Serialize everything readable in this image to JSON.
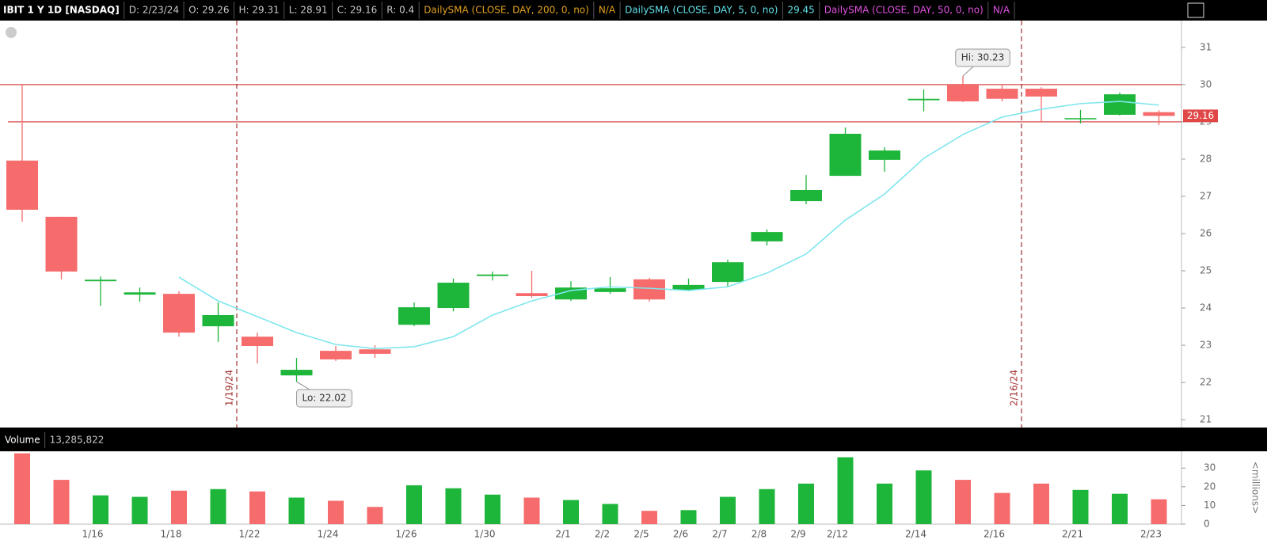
{
  "chart_data": {
    "type": "candlestick",
    "header": [
      {
        "text": "IBIT 1 Y 1D [NASDAQ]",
        "color": "#ffffff"
      },
      {
        "text": "D: 2/23/24",
        "color": "#c8c8c8"
      },
      {
        "text": "O: 29.26",
        "color": "#c8c8c8"
      },
      {
        "text": "H: 29.31",
        "color": "#c8c8c8"
      },
      {
        "text": "L: 28.91",
        "color": "#c8c8c8"
      },
      {
        "text": "C: 29.16",
        "color": "#c8c8c8"
      },
      {
        "text": "R: 0.4",
        "color": "#c8c8c8"
      }
    ],
    "studies": [
      {
        "name": "DailySMA (CLOSE, DAY, 200, 0, no)",
        "value": "N/A",
        "color": "#e0a020"
      },
      {
        "name": "DailySMA (CLOSE, DAY, 5, 0, no)",
        "value": 29.45,
        "color": "#60e0e8"
      },
      {
        "name": "DailySMA (CLOSE, DAY, 50, 0, no)",
        "value": "N/A",
        "color": "#e050e0"
      }
    ],
    "categories": [
      null,
      null,
      "1/16",
      null,
      "1/18",
      null,
      "1/22",
      null,
      "1/24",
      null,
      "1/26",
      null,
      "1/30",
      null,
      "2/1",
      "2/2",
      "2/5",
      "2/6",
      "2/7",
      "2/8",
      "2/9",
      "2/12",
      null,
      "2/14",
      null,
      "2/16",
      null,
      "2/21",
      null,
      "2/23"
    ],
    "open": [
      27.96,
      26.45,
      24.72,
      24.36,
      24.38,
      23.51,
      23.23,
      22.19,
      22.85,
      22.89,
      23.55,
      24.0,
      24.86,
      24.4,
      24.23,
      24.43,
      24.77,
      24.49,
      24.7,
      25.79,
      26.87,
      27.55,
      27.98,
      29.58,
      30.0,
      29.89,
      29.89,
      29.07,
      29.19,
      29.26
    ],
    "high": [
      30.0,
      26.45,
      24.85,
      24.55,
      24.45,
      24.15,
      23.34,
      22.66,
      22.98,
      23.0,
      24.15,
      24.79,
      24.98,
      25.0,
      24.72,
      24.83,
      24.81,
      24.79,
      25.3,
      26.11,
      27.57,
      28.85,
      28.32,
      29.87,
      30.23,
      29.98,
      29.93,
      29.32,
      29.79,
      29.31
    ],
    "low": [
      26.32,
      24.77,
      24.06,
      24.17,
      23.23,
      23.09,
      22.51,
      22.02,
      22.58,
      22.66,
      23.51,
      23.91,
      24.74,
      24.28,
      24.19,
      24.38,
      24.17,
      24.45,
      24.57,
      25.68,
      26.79,
      27.55,
      27.66,
      29.28,
      29.53,
      29.55,
      28.98,
      28.96,
      29.17,
      28.91
    ],
    "close": [
      26.64,
      24.98,
      24.76,
      24.42,
      23.34,
      23.81,
      22.98,
      22.34,
      22.62,
      22.77,
      24.02,
      24.68,
      24.9,
      24.32,
      24.55,
      24.53,
      24.23,
      24.62,
      25.23,
      26.04,
      27.17,
      28.68,
      28.23,
      29.62,
      29.55,
      29.62,
      29.68,
      29.1,
      29.74,
      29.16
    ],
    "sma": {
      "color": "#7fe6ee",
      "values": [
        null,
        null,
        null,
        null,
        24.83,
        24.19,
        23.77,
        23.34,
        23.02,
        22.91,
        22.96,
        23.23,
        23.81,
        24.19,
        24.47,
        24.57,
        24.53,
        24.47,
        24.57,
        24.94,
        25.45,
        26.36,
        27.06,
        28.02,
        28.66,
        29.13,
        29.34,
        29.49,
        29.55,
        29.45
      ]
    },
    "up_color": "#1db53a",
    "down_color": "#f66b6b",
    "ylim": [
      20.79,
      31.72
    ],
    "yticks": [
      21,
      22,
      23,
      24,
      25,
      26,
      27,
      28,
      29,
      30,
      31
    ],
    "price_levels": [
      30,
      29
    ],
    "markers": [
      {
        "label": "1/19/24"
      },
      {
        "label": "2/16/24"
      }
    ],
    "annotations": {
      "high": "Hi: 30.23",
      "low": "Lo: 22.02"
    },
    "volume_title": "Volume",
    "volume_label": "13,285,822",
    "volume_unit": "<millions>",
    "volume": [
      37.9,
      23.7,
      15.4,
      14.6,
      17.9,
      18.75,
      17.5,
      14.2,
      12.5,
      9.2,
      20.8,
      19.2,
      15.8,
      14.2,
      12.9,
      10.8,
      7.1,
      7.5,
      14.6,
      18.75,
      21.7,
      35.8,
      21.7,
      28.75,
      23.7,
      16.7,
      21.7,
      18.3,
      16.25,
      13.285822
    ],
    "volume_ylim": [
      0,
      39
    ],
    "volume_yticks": [
      0,
      10,
      20,
      30
    ]
  }
}
